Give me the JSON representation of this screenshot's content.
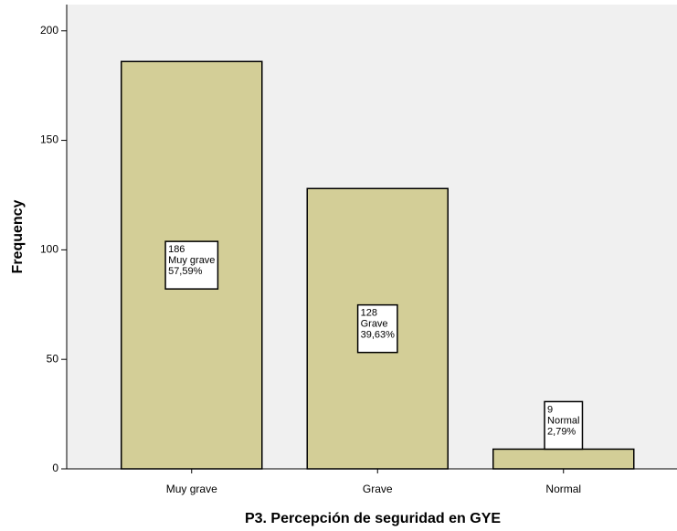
{
  "chart_data": {
    "type": "bar",
    "x_label": "P3. Percepción de seguridad en GYE",
    "y_label": "Frequency",
    "categories": [
      "Muy grave",
      "Grave",
      "Normal"
    ],
    "values": [
      186,
      128,
      9
    ],
    "percent_labels": [
      "57,59%",
      "39,63%",
      "2,79%"
    ],
    "color": "#d3ce97",
    "ylim": [
      0,
      212
    ],
    "yticks": [
      0,
      50,
      100,
      150,
      200
    ],
    "grid": false
  }
}
